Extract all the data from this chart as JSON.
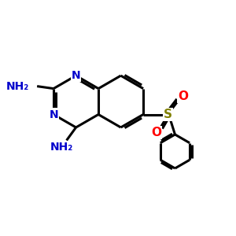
{
  "background_color": "#ffffff",
  "bond_color": "#000000",
  "nitrogen_color": "#0000cc",
  "oxygen_color": "#ff0000",
  "sulfur_color": "#808000",
  "line_width": 2.2,
  "font_size_atom": 11,
  "font_size_nh2": 11,
  "xlim": [
    0,
    10
  ],
  "ylim": [
    0,
    10
  ],
  "hex_side": 1.0
}
